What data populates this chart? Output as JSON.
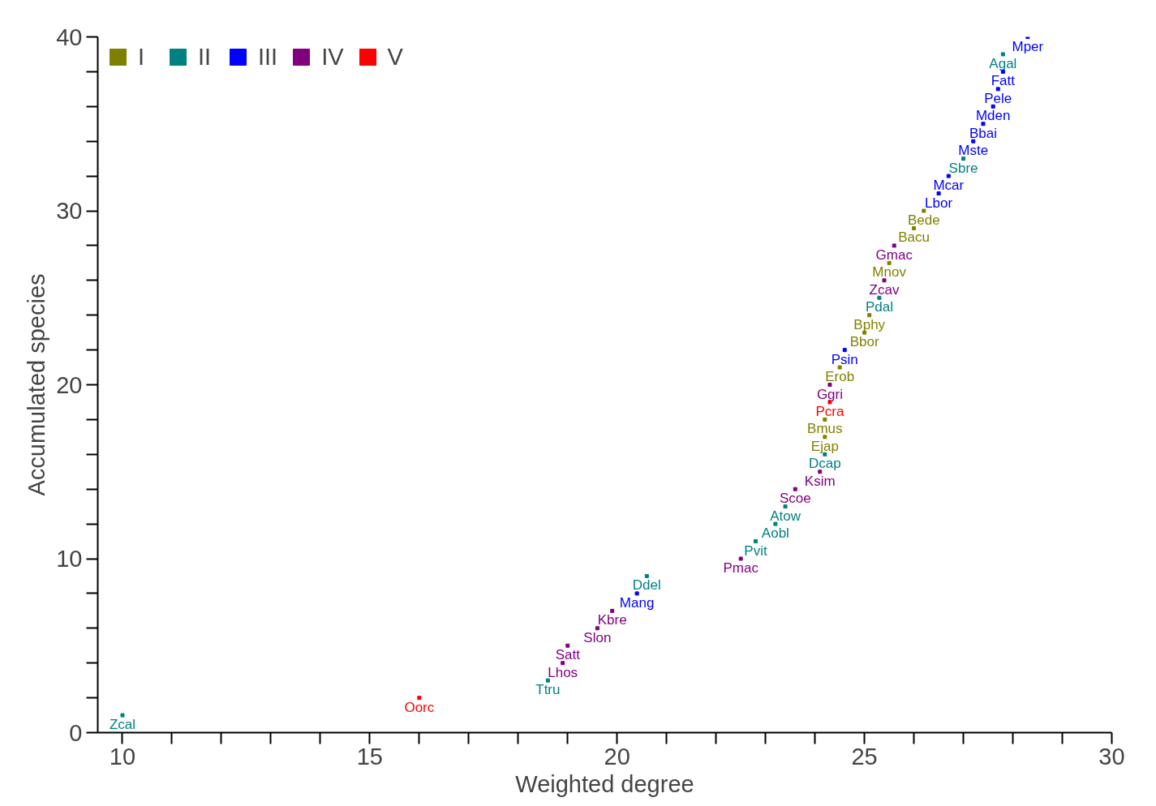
{
  "chart_data": {
    "type": "scatter",
    "xlabel": "Weighted degree",
    "ylabel": "Accumulated species",
    "xlim": [
      9.5,
      30
    ],
    "ylim": [
      0,
      40
    ],
    "xticks": [
      10,
      15,
      20,
      25,
      30
    ],
    "yticks": [
      0,
      10,
      20,
      30,
      40
    ],
    "grid": false,
    "legend": "top left",
    "marker": "square",
    "series": [
      {
        "name": "I",
        "color": "#808000",
        "x": [
          24.2,
          24.2,
          24.5,
          25.0,
          25.1,
          25.5,
          26.0,
          26.2
        ],
        "values": [
          17,
          18,
          21,
          23,
          24,
          27,
          29,
          30
        ],
        "value_labels": [
          "Ejap",
          "Bmus",
          "Erob",
          "Bbor",
          "Bphy",
          "Mnov",
          "Bacu",
          "Bede"
        ]
      },
      {
        "name": "II",
        "color": "#008080",
        "x": [
          10.0,
          18.6,
          20.6,
          22.8,
          23.2,
          23.4,
          24.2,
          25.3,
          27.0,
          27.8
        ],
        "values": [
          1,
          3,
          9,
          11,
          12,
          13,
          16,
          25,
          33,
          39
        ],
        "value_labels": [
          "Zcal",
          "Ttru",
          "Ddel",
          "Pvit",
          "Aobl",
          "Atow",
          "Dcap",
          "Pdal",
          "Sbre",
          "Agal"
        ]
      },
      {
        "name": "III",
        "color": "#0000ff",
        "x": [
          20.4,
          24.6,
          26.5,
          26.7,
          27.2,
          27.4,
          27.6,
          27.7,
          27.8,
          28.3
        ],
        "values": [
          8,
          22,
          31,
          32,
          34,
          35,
          36,
          37,
          38,
          40
        ],
        "value_labels": [
          "Mang",
          "Psin",
          "Lbor",
          "Mcar",
          "Mste",
          "Bbai",
          "Mden",
          "Pele",
          "Fatt",
          "Mper"
        ]
      },
      {
        "name": "IV",
        "color": "#800080",
        "x": [
          18.9,
          19.0,
          19.6,
          19.9,
          22.5,
          23.6,
          24.1,
          24.3,
          25.4,
          25.6
        ],
        "values": [
          4,
          5,
          6,
          7,
          10,
          14,
          15,
          20,
          26,
          28
        ],
        "value_labels": [
          "Lhos",
          "Satt",
          "Slon",
          "Kbre",
          "Pmac",
          "Scoe",
          "Ksim",
          "Ggri",
          "Zcav",
          "Gmac"
        ]
      },
      {
        "name": "V",
        "color": "#ff0000",
        "x": [
          16.0,
          24.3
        ],
        "values": [
          2,
          19
        ],
        "value_labels": [
          "Oorc",
          "Pcra"
        ]
      }
    ]
  }
}
